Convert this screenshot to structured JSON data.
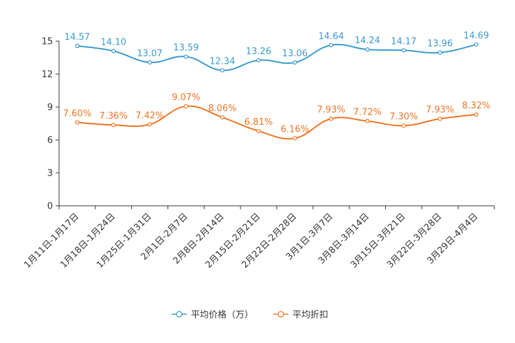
{
  "chart_data": {
    "type": "line",
    "categories": [
      "1月11日-1月17日",
      "1月18日-1月24日",
      "1月25日-1月31日",
      "2月1日-2月7日",
      "2月8日-2月14日",
      "2月15日-2月21日",
      "2月22日-2月28日",
      "3月1日-3月7日",
      "3月8日-3月14日",
      "3月15日-3月21日",
      "3月22日-3月28日",
      "3月29日-4月4日"
    ],
    "ylim": [
      0,
      15
    ],
    "yticks": [
      0,
      3,
      6,
      9,
      12,
      15
    ],
    "series": [
      {
        "name": "平均价格（万）",
        "color": "#3a9bcf",
        "values": [
          14.57,
          14.1,
          13.07,
          13.59,
          12.34,
          13.26,
          13.06,
          14.64,
          14.24,
          14.17,
          13.96,
          14.69
        ],
        "labels": [
          "14.57",
          "14.10",
          "13.07",
          "13.59",
          "12.34",
          "13.26",
          "13.06",
          "14.64",
          "14.24",
          "14.17",
          "13.96",
          "14.69"
        ]
      },
      {
        "name": "平均折扣",
        "color": "#f07523",
        "values": [
          7.6,
          7.36,
          7.42,
          9.07,
          8.06,
          6.81,
          6.16,
          7.93,
          7.72,
          7.3,
          7.93,
          8.32
        ],
        "labels": [
          "7.60%",
          "7.36%",
          "7.42%",
          "9.07%",
          "8.06%",
          "6.81%",
          "6.16%",
          "7.93%",
          "7.72%",
          "7.30%",
          "7.93%",
          "8.32%"
        ]
      }
    ],
    "legend": "bottom-center"
  }
}
